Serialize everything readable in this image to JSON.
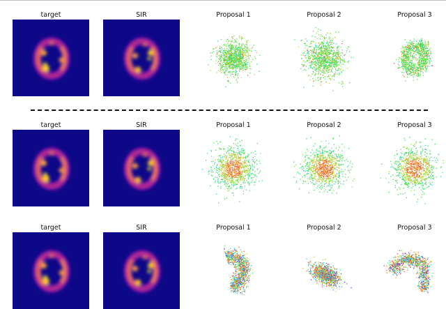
{
  "chart_data": {
    "type": "scatter",
    "description": "Grid of 2-D density images (target, SIR) and proposal sample scatters in three settings separated by a dashed line.",
    "rows": [
      {
        "panels": [
          {
            "title": "target",
            "kind": "density"
          },
          {
            "title": "SIR",
            "kind": "density"
          },
          {
            "title": "Proposal 1",
            "kind": "scatter",
            "shape": "blob",
            "spread": 0.55,
            "color_mix": "green-dominant"
          },
          {
            "title": "Proposal 2",
            "kind": "scatter",
            "shape": "blob",
            "spread": 0.75,
            "color_mix": "green-dominant"
          },
          {
            "title": "Proposal 3",
            "kind": "scatter",
            "shape": "diagonal-ring",
            "spread": 1.0,
            "color_mix": "green-dominant"
          }
        ]
      },
      {
        "panels": [
          {
            "title": "target",
            "kind": "density"
          },
          {
            "title": "SIR",
            "kind": "density"
          },
          {
            "title": "Proposal 1",
            "kind": "scatter",
            "shape": "blob",
            "spread": 0.75,
            "color_mix": "orange-center"
          },
          {
            "title": "Proposal 2",
            "kind": "scatter",
            "shape": "blob",
            "spread": 0.75,
            "color_mix": "orange-center"
          },
          {
            "title": "Proposal 3",
            "kind": "scatter",
            "shape": "blob",
            "spread": 0.75,
            "color_mix": "orange-center"
          }
        ]
      },
      {
        "panels": [
          {
            "title": "target",
            "kind": "density"
          },
          {
            "title": "SIR",
            "kind": "density"
          },
          {
            "title": "Proposal 1",
            "kind": "scatter",
            "shape": "right-arc",
            "spread": 1.0,
            "color_mix": "rainbow"
          },
          {
            "title": "Proposal 2",
            "kind": "scatter",
            "shape": "tilted-ellipse",
            "spread": 0.55,
            "color_mix": "rainbow"
          },
          {
            "title": "Proposal 3",
            "kind": "scatter",
            "shape": "hook",
            "spread": 1.0,
            "color_mix": "rainbow"
          }
        ]
      }
    ],
    "colormap_background": "#0d0887",
    "colormap_peak": "#fce725"
  }
}
